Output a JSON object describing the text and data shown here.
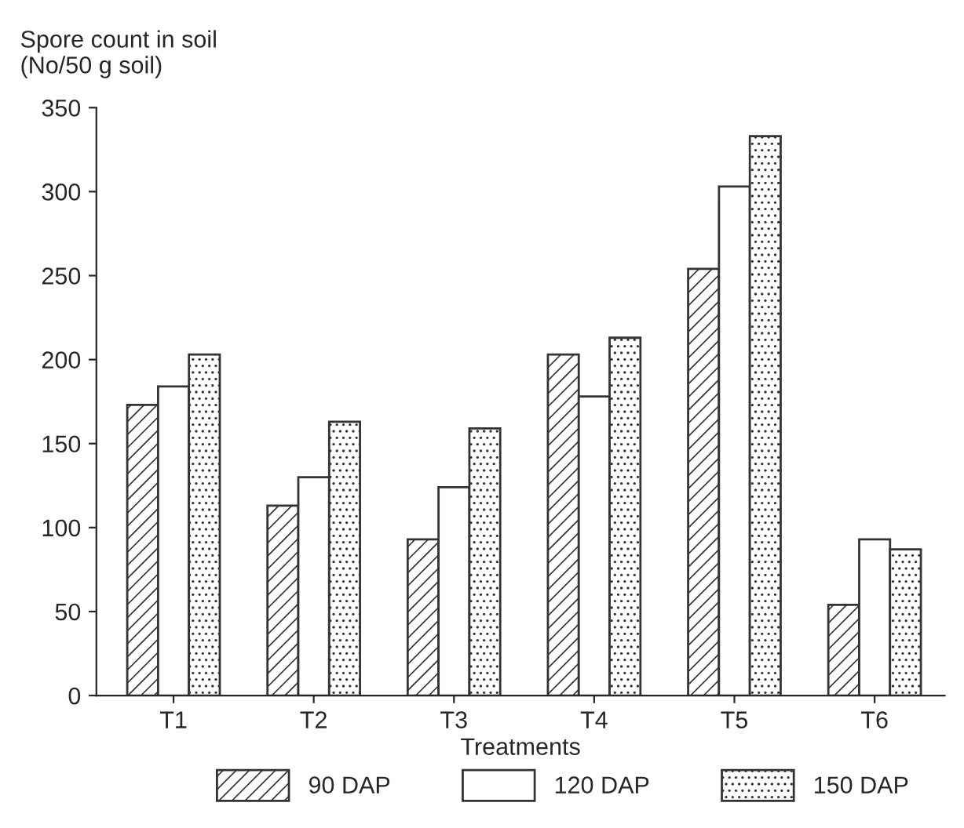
{
  "chart_data": {
    "type": "bar",
    "ylabel": "Spore count in soil\n(No/50 g soil)",
    "xlabel": "Treatments",
    "categories": [
      "T1",
      "T2",
      "T3",
      "T4",
      "T5",
      "T6"
    ],
    "series": [
      {
        "name": "90 DAP",
        "color": "#333333",
        "values": [
          173,
          113,
          93,
          203,
          254,
          54
        ]
      },
      {
        "name": "120 DAP",
        "color": "#ffffff",
        "values": [
          184,
          130,
          124,
          178,
          303,
          93
        ]
      },
      {
        "name": "150 DAP",
        "color": "#333333",
        "values": [
          203,
          163,
          159,
          213,
          333,
          87
        ]
      }
    ],
    "ylim": [
      0,
      350
    ],
    "yticks": [
      0,
      50,
      100,
      150,
      200,
      250,
      300,
      350
    ],
    "grid": false,
    "legend": "bottom"
  }
}
